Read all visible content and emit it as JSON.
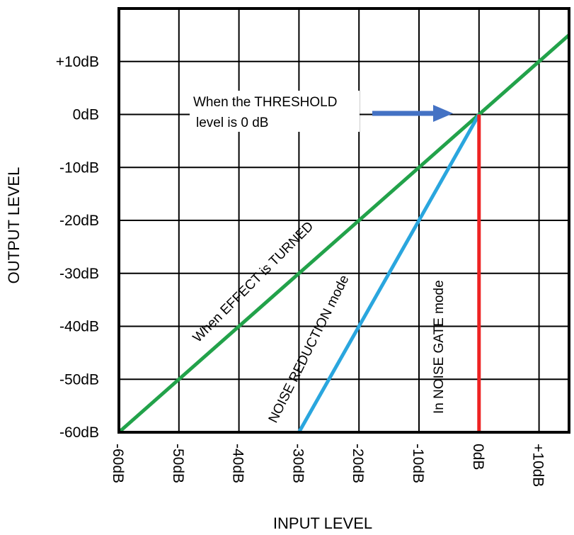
{
  "chart_data": {
    "type": "line",
    "xlabel": "INPUT LEVEL",
    "ylabel": "OUTPUT LEVEL",
    "xlim": [
      -60,
      15
    ],
    "ylim": [
      -60,
      20
    ],
    "grid": true,
    "x_ticks": [
      -60,
      -50,
      -40,
      -30,
      -20,
      -10,
      0,
      10
    ],
    "x_tick_labels": [
      "-60dB",
      "-50dB",
      "-40dB",
      "-30dB",
      "-20dB",
      "-10dB",
      "0dB",
      "+10dB"
    ],
    "y_ticks": [
      -60,
      -50,
      -40,
      -30,
      -20,
      -10,
      0,
      10
    ],
    "y_tick_labels": [
      "-60dB",
      "-50dB",
      "-40dB",
      "-30dB",
      "-20dB",
      "-10dB",
      "0dB",
      "+10dB"
    ],
    "series": [
      {
        "name": "When EFFECT is TURNED",
        "color": "#22a24a",
        "points": [
          [
            -60,
            -60
          ],
          [
            15,
            15
          ]
        ]
      },
      {
        "name": "NOISE REDUCTION mode",
        "color": "#2aa6de",
        "points": [
          [
            -30,
            -60
          ],
          [
            0,
            0
          ]
        ]
      },
      {
        "name": "In NOISE GATE mode",
        "color": "#ee2222",
        "points": [
          [
            0,
            -60
          ],
          [
            0,
            0
          ]
        ]
      }
    ],
    "annotations": {
      "threshold_line1": "When the THRESHOLD",
      "threshold_line2": "level is 0 dB",
      "arrow_color": "#4472c4"
    }
  }
}
